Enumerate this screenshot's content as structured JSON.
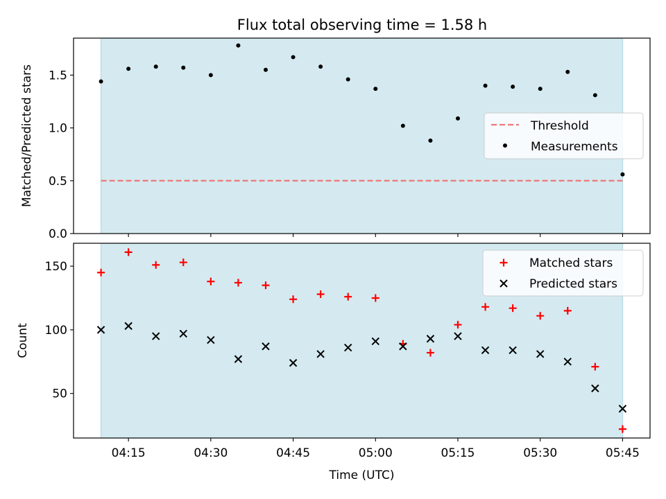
{
  "title": "Flux total observing time = 1.58 h",
  "chart_data": [
    {
      "type": "scatter",
      "panel": "top",
      "ylabel": "Matched/Predicted stars",
      "xlabel": "",
      "ylim": [
        0,
        1.85
      ],
      "yticks": [
        0.0,
        0.5,
        1.0,
        1.5
      ],
      "ytick_labels": [
        "0.0",
        "0.5",
        "1.0",
        "1.5"
      ],
      "xlim_minutes": [
        245,
        350
      ],
      "xticks_minutes": [
        255,
        270,
        285,
        300,
        315,
        330,
        345
      ],
      "xtick_labels": [
        "04:15",
        "04:30",
        "04:45",
        "05:00",
        "05:15",
        "05:30",
        "05:45"
      ],
      "show_xtick_labels": false,
      "shaded_span_minutes": [
        250,
        345
      ],
      "shade_color": "#d4eaf0",
      "threshold": {
        "name": "Threshold",
        "value": 0.5,
        "x_minutes": [
          250,
          345
        ],
        "color": "#ee7777"
      },
      "series": [
        {
          "name": "Measurements",
          "marker": "dot",
          "color": "#000000",
          "x_minutes": [
            250,
            255,
            260,
            265,
            270,
            275,
            280,
            285,
            290,
            295,
            300,
            305,
            310,
            315,
            320,
            325,
            330,
            335,
            340,
            345
          ],
          "values": [
            1.44,
            1.56,
            1.58,
            1.57,
            1.5,
            1.78,
            1.55,
            1.67,
            1.58,
            1.46,
            1.37,
            1.02,
            0.88,
            1.09,
            1.4,
            1.39,
            1.37,
            1.53,
            1.31,
            0.56
          ]
        }
      ],
      "legend": {
        "placement": "right",
        "entries": [
          "Threshold",
          "Measurements"
        ]
      }
    },
    {
      "type": "scatter",
      "panel": "bottom",
      "ylabel": "Count",
      "xlabel": "Time (UTC)",
      "ylim": [
        15,
        168
      ],
      "yticks": [
        50,
        100,
        150
      ],
      "ytick_labels": [
        "50",
        "100",
        "150"
      ],
      "xlim_minutes": [
        245,
        350
      ],
      "xticks_minutes": [
        255,
        270,
        285,
        300,
        315,
        330,
        345
      ],
      "xtick_labels": [
        "04:15",
        "04:30",
        "04:45",
        "05:00",
        "05:15",
        "05:30",
        "05:45"
      ],
      "show_xtick_labels": true,
      "shaded_span_minutes": [
        250,
        345
      ],
      "shade_color": "#d4eaf0",
      "series": [
        {
          "name": "Matched stars",
          "marker": "plus",
          "color": "#ff0000",
          "x_minutes": [
            250,
            255,
            260,
            265,
            270,
            275,
            280,
            285,
            290,
            295,
            300,
            305,
            310,
            315,
            320,
            325,
            330,
            335,
            340,
            345
          ],
          "values": [
            145,
            161,
            151,
            153,
            138,
            137,
            135,
            124,
            128,
            126,
            125,
            89,
            82,
            104,
            118,
            117,
            111,
            115,
            71,
            22
          ]
        },
        {
          "name": "Predicted stars",
          "marker": "x",
          "color": "#000000",
          "x_minutes": [
            250,
            255,
            260,
            265,
            270,
            275,
            280,
            285,
            290,
            295,
            300,
            305,
            310,
            315,
            320,
            325,
            330,
            335,
            340,
            345
          ],
          "values": [
            100,
            103,
            95,
            97,
            92,
            77,
            87,
            74,
            81,
            86,
            91,
            87,
            93,
            95,
            84,
            84,
            81,
            75,
            54,
            38
          ]
        }
      ],
      "legend": {
        "placement": "top-right",
        "entries": [
          "Matched stars",
          "Predicted stars"
        ]
      }
    }
  ]
}
